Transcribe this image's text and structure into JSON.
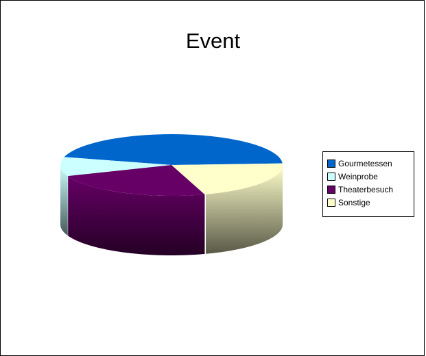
{
  "chart_data": {
    "type": "pie",
    "title": "Event",
    "legend_position": "right",
    "slices": [
      {
        "label": "Gourmetessen",
        "value": 45,
        "color": "#0066CC"
      },
      {
        "label": "Weinprobe",
        "value": 10,
        "color": "#CCFFFF"
      },
      {
        "label": "Theaterbesuch",
        "value": 24,
        "color": "#660066"
      },
      {
        "label": "Sonstige",
        "value": 21,
        "color": "#FFFFCC"
      }
    ]
  }
}
